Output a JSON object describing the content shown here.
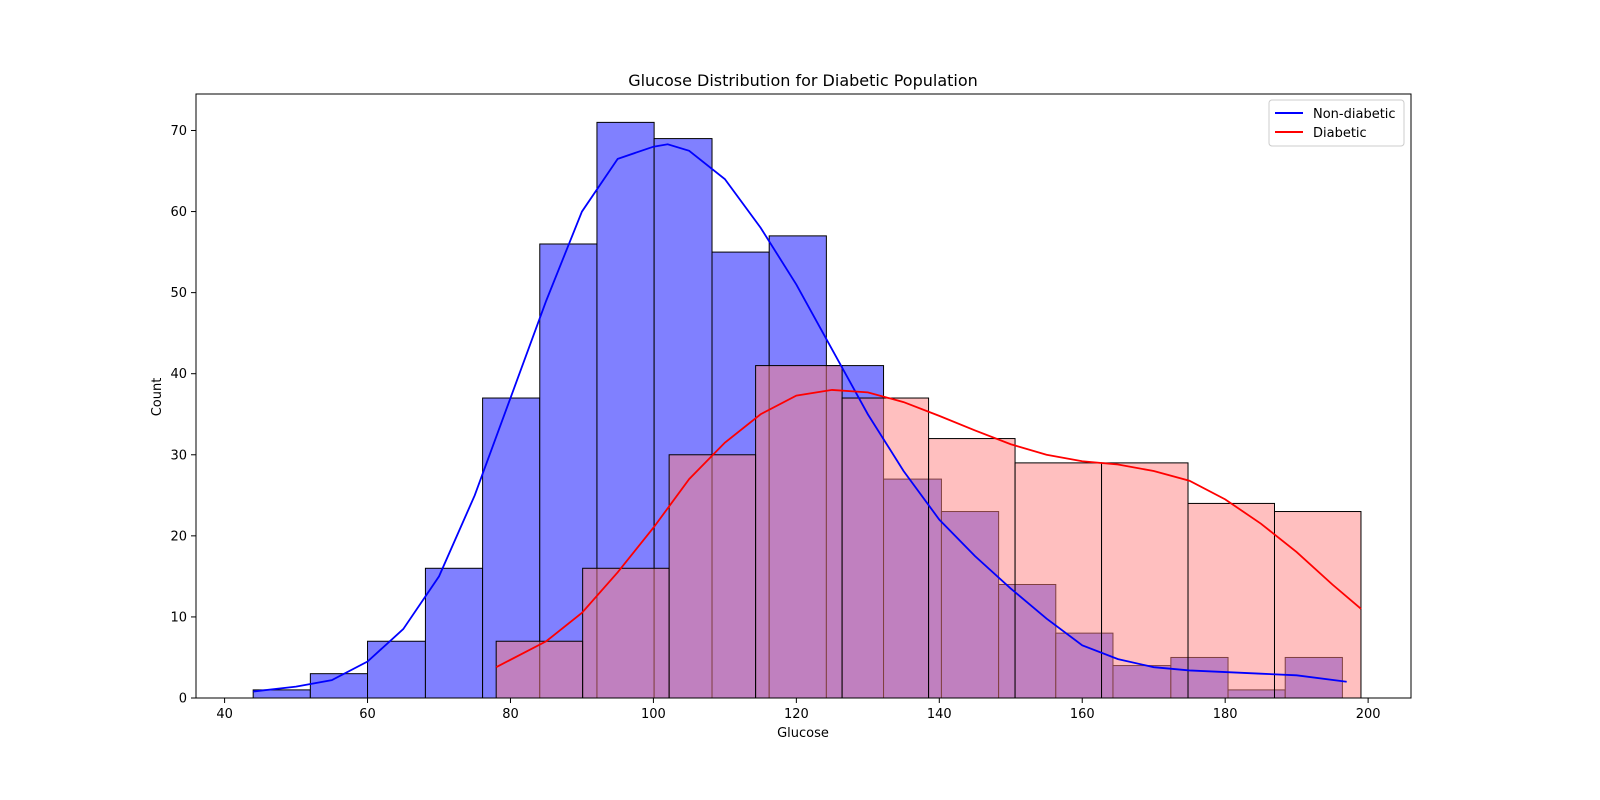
{
  "chart_data": {
    "type": "bar",
    "title": "Glucose Distribution for Diabetic Population",
    "xlabel": "Glucose",
    "ylabel": "Count",
    "xlim": [
      36,
      206
    ],
    "ylim": [
      0,
      74.5
    ],
    "xticks": [
      40,
      60,
      80,
      100,
      120,
      140,
      160,
      180,
      200
    ],
    "yticks": [
      0,
      10,
      20,
      30,
      40,
      50,
      60,
      70
    ],
    "grid": false,
    "legend_position": "top-right",
    "series": [
      {
        "name": "Non-diabetic",
        "color": "#0000ff",
        "fill": "#8080ff",
        "bins": [
          {
            "x0": 44.0,
            "x1": 52.0,
            "count": 1
          },
          {
            "x0": 52.0,
            "x1": 60.0,
            "count": 3
          },
          {
            "x0": 60.0,
            "x1": 68.1,
            "count": 7
          },
          {
            "x0": 68.1,
            "x1": 76.1,
            "count": 16
          },
          {
            "x0": 76.1,
            "x1": 84.1,
            "count": 37
          },
          {
            "x0": 84.1,
            "x1": 92.1,
            "count": 56
          },
          {
            "x0": 92.1,
            "x1": 100.1,
            "count": 71
          },
          {
            "x0": 100.1,
            "x1": 108.2,
            "count": 69
          },
          {
            "x0": 108.2,
            "x1": 116.2,
            "count": 55
          },
          {
            "x0": 116.2,
            "x1": 124.2,
            "count": 57
          },
          {
            "x0": 124.2,
            "x1": 132.2,
            "count": 41
          },
          {
            "x0": 132.2,
            "x1": 140.3,
            "count": 27
          },
          {
            "x0": 140.3,
            "x1": 148.3,
            "count": 23
          },
          {
            "x0": 148.3,
            "x1": 156.3,
            "count": 14
          },
          {
            "x0": 156.3,
            "x1": 164.3,
            "count": 8
          },
          {
            "x0": 164.3,
            "x1": 172.4,
            "count": 4
          },
          {
            "x0": 172.4,
            "x1": 180.4,
            "count": 5
          },
          {
            "x0": 180.4,
            "x1": 188.4,
            "count": 1
          },
          {
            "x0": 188.4,
            "x1": 196.4,
            "count": 5
          }
        ],
        "kde": [
          [
            44,
            0.8
          ],
          [
            50,
            1.4
          ],
          [
            55,
            2.2
          ],
          [
            60,
            4.5
          ],
          [
            65,
            8.5
          ],
          [
            70,
            15
          ],
          [
            75,
            25
          ],
          [
            80,
            37
          ],
          [
            85,
            49
          ],
          [
            90,
            60
          ],
          [
            95,
            66.5
          ],
          [
            100,
            68
          ],
          [
            102,
            68.3
          ],
          [
            105,
            67.5
          ],
          [
            110,
            64
          ],
          [
            115,
            58
          ],
          [
            120,
            51
          ],
          [
            125,
            43
          ],
          [
            130,
            35
          ],
          [
            135,
            28
          ],
          [
            140,
            22
          ],
          [
            145,
            17.5
          ],
          [
            150,
            13.5
          ],
          [
            155,
            9.8
          ],
          [
            160,
            6.5
          ],
          [
            165,
            4.8
          ],
          [
            170,
            3.8
          ],
          [
            175,
            3.4
          ],
          [
            180,
            3.2
          ],
          [
            185,
            3.0
          ],
          [
            190,
            2.8
          ],
          [
            197,
            2.0
          ]
        ]
      },
      {
        "name": "Diabetic",
        "color": "#ff0000",
        "fill": "#ff8080",
        "bins": [
          {
            "x0": 78.0,
            "x1": 90.1,
            "count": 7
          },
          {
            "x0": 90.1,
            "x1": 102.2,
            "count": 16
          },
          {
            "x0": 102.2,
            "x1": 114.3,
            "count": 30
          },
          {
            "x0": 114.3,
            "x1": 126.4,
            "count": 41
          },
          {
            "x0": 126.4,
            "x1": 138.5,
            "count": 37
          },
          {
            "x0": 138.5,
            "x1": 150.6,
            "count": 32
          },
          {
            "x0": 150.6,
            "x1": 162.7,
            "count": 29
          },
          {
            "x0": 162.7,
            "x1": 174.8,
            "count": 29
          },
          {
            "x0": 174.8,
            "x1": 186.9,
            "count": 24
          },
          {
            "x0": 186.9,
            "x1": 199.0,
            "count": 23
          }
        ],
        "kde": [
          [
            78,
            3.8
          ],
          [
            85,
            7
          ],
          [
            90,
            10.5
          ],
          [
            95,
            15.5
          ],
          [
            100,
            21
          ],
          [
            105,
            27
          ],
          [
            110,
            31.5
          ],
          [
            115,
            35
          ],
          [
            120,
            37.3
          ],
          [
            125,
            38
          ],
          [
            130,
            37.7
          ],
          [
            135,
            36.5
          ],
          [
            140,
            34.8
          ],
          [
            145,
            33
          ],
          [
            150,
            31.3
          ],
          [
            155,
            30
          ],
          [
            160,
            29.2
          ],
          [
            165,
            28.8
          ],
          [
            170,
            28
          ],
          [
            175,
            26.8
          ],
          [
            180,
            24.5
          ],
          [
            185,
            21.5
          ],
          [
            190,
            18
          ],
          [
            195,
            14
          ],
          [
            199,
            11
          ]
        ]
      }
    ]
  }
}
